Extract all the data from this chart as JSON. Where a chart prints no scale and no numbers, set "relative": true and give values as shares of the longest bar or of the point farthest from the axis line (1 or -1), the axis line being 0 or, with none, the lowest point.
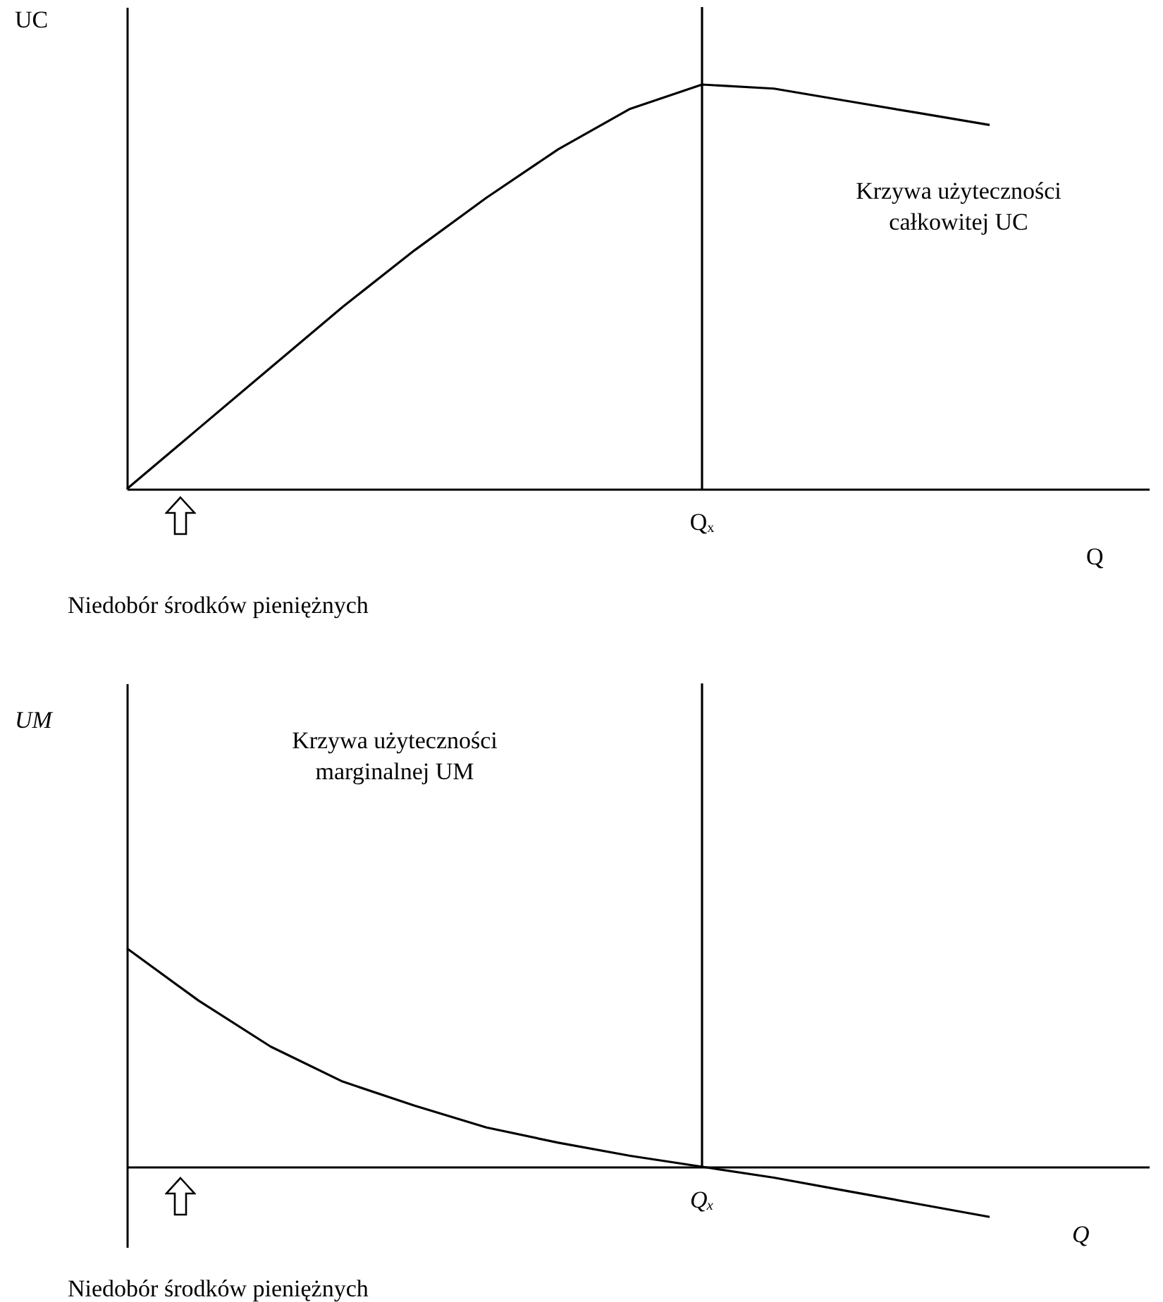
{
  "chart_data": [
    {
      "type": "line",
      "relative": true,
      "ylabel": "UC",
      "xlabel": "Q",
      "categories": [
        null,
        null,
        null,
        null,
        null,
        null,
        null,
        null,
        null,
        null,
        null,
        null,
        null
      ],
      "series": [
        {
          "color": "#000000",
          "values": [
            0,
            0.15,
            0.3,
            0.45,
            0.59,
            0.72,
            0.84,
            0.94,
            1,
            0.99,
            0.96,
            0.93,
            0.9
          ]
        }
      ],
      "annotations": [
        "Krzywa użyteczności całkowitej UC",
        "Niedobór środków pieniężnych",
        "Qₓ"
      ]
    },
    {
      "type": "line",
      "relative": true,
      "ylabel": "UM",
      "xlabel": "Q",
      "categories": [
        null,
        null,
        null,
        null,
        null,
        null,
        null,
        null,
        null,
        null,
        null,
        null,
        null
      ],
      "series": [
        {
          "color": "#000000",
          "values": [
            1,
            0.76,
            0.55,
            0.39,
            0.28,
            0.18,
            0.11,
            0.05,
            0,
            -0.05,
            -0.11,
            -0.17,
            -0.23
          ]
        }
      ],
      "annotations": [
        "Krzywa użyteczności marginalnej UM",
        "Niedobór środków pieniężnych",
        "Qₓ"
      ]
    }
  ]
}
